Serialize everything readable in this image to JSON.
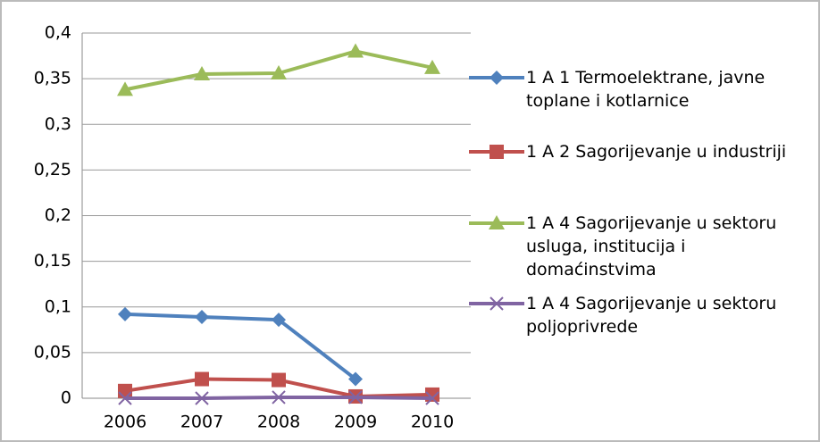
{
  "chart_data": {
    "type": "line",
    "categories": [
      "2006",
      "2007",
      "2008",
      "2009",
      "2010"
    ],
    "series": [
      {
        "name": "1 A 1 Termoelektrane, javne toplane i kotlarnice",
        "color": "#4f81bd",
        "marker": "diamond",
        "values": [
          0.092,
          0.089,
          0.086,
          0.021,
          null
        ]
      },
      {
        "name": "1 A 2 Sagorijevanje u industriji",
        "color": "#c0504d",
        "marker": "square",
        "values": [
          0.008,
          0.021,
          0.02,
          0.002,
          0.004
        ]
      },
      {
        "name": "1 A 4 Sagorijevanje u sektoru usluga, institucija i domaćinstvima",
        "color": "#9bbb59",
        "marker": "triangle",
        "values": [
          0.338,
          0.355,
          0.356,
          0.38,
          0.362
        ]
      },
      {
        "name": "1 A 4 Sagorijevanje u sektoru poljoprivrede",
        "color": "#8064a2",
        "marker": "x",
        "values": [
          0,
          0,
          0.001,
          0.001,
          0
        ]
      }
    ],
    "ylim": [
      0,
      0.4
    ],
    "yticks": [
      0,
      {
        "value": 0.05,
        "label": "0,05"
      },
      {
        "value": 0.1,
        "label": "0,1"
      },
      {
        "value": 0.15,
        "label": "0,15"
      },
      {
        "value": 0.2,
        "label": "0,2"
      },
      {
        "value": 0.25,
        "label": "0,25"
      },
      {
        "value": 0.3,
        "label": "0,3"
      },
      {
        "value": 0.35,
        "label": "0,35"
      },
      {
        "value": 0.4,
        "label": "0,4"
      }
    ],
    "grid": true,
    "legend": "right"
  }
}
